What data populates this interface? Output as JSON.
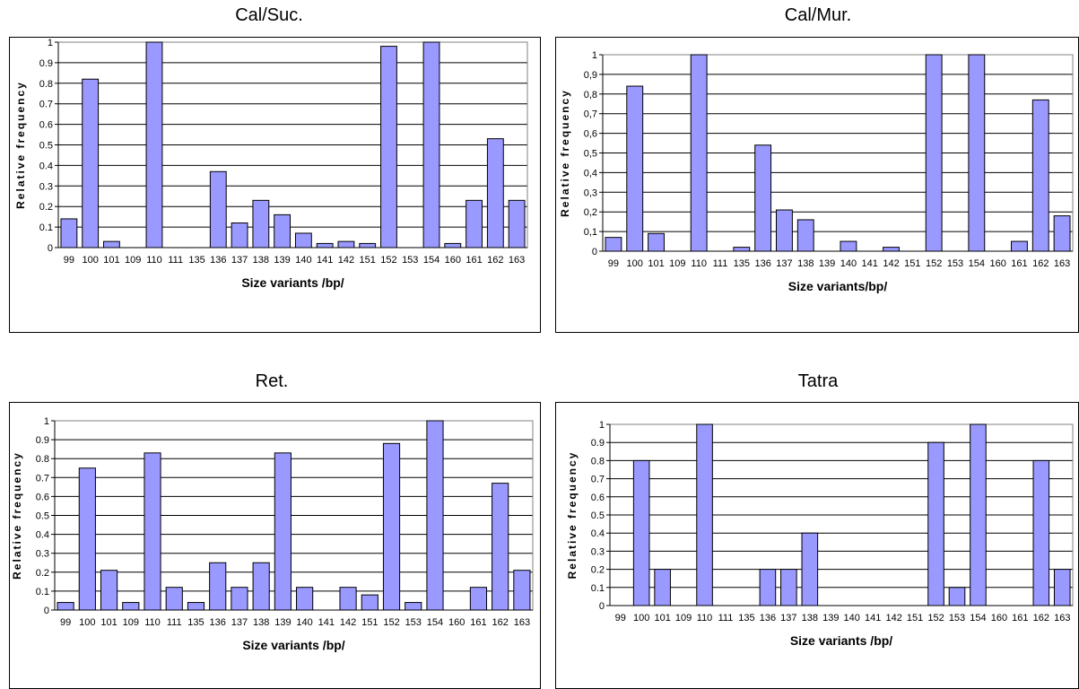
{
  "chart_data": [
    {
      "type": "bar",
      "title": "Cal/Suc.",
      "xlabel": "Size variants /bp/",
      "ylabel": "Relative frequency",
      "ylim": [
        0,
        1
      ],
      "y_ticks": [
        "0",
        "0.1",
        "0.2",
        "0.3",
        "0.4",
        "0.5",
        "0.6",
        "0.7",
        "0.8",
        "0.9",
        "1"
      ],
      "grid": true,
      "bar_color": "#9999ff",
      "categories": [
        "99",
        "100",
        "101",
        "109",
        "110",
        "111",
        "135",
        "136",
        "137",
        "138",
        "139",
        "140",
        "141",
        "142",
        "151",
        "152",
        "153",
        "154",
        "160",
        "161",
        "162",
        "163"
      ],
      "values": [
        0.14,
        0.82,
        0.03,
        0,
        1.0,
        0,
        0,
        0.37,
        0.12,
        0.23,
        0.16,
        0.07,
        0.02,
        0.03,
        0.02,
        0.98,
        0,
        1.0,
        0.02,
        0.23,
        0.53,
        0.23
      ]
    },
    {
      "type": "bar",
      "title": "Cal/Mur.",
      "xlabel": "Size variants/bp/",
      "ylabel": "Relative frequency",
      "ylim": [
        0,
        1
      ],
      "y_ticks": [
        "0",
        "0,1",
        "0,2",
        "0,3",
        "0,4",
        "0,5",
        "0,6",
        "0,7",
        "0,8",
        "0,9",
        "1"
      ],
      "grid": true,
      "bar_color": "#9999ff",
      "categories": [
        "99",
        "100",
        "101",
        "109",
        "110",
        "111",
        "135",
        "136",
        "137",
        "138",
        "139",
        "140",
        "141",
        "142",
        "151",
        "152",
        "153",
        "154",
        "160",
        "161",
        "162",
        "163"
      ],
      "values": [
        0.07,
        0.84,
        0.09,
        0,
        1.0,
        0,
        0.02,
        0.54,
        0.21,
        0.16,
        0,
        0.05,
        0,
        0.02,
        0,
        1.0,
        0,
        1.0,
        0,
        0.05,
        0.77,
        0.18
      ]
    },
    {
      "type": "bar",
      "title": "Ret.",
      "xlabel": "Size variants /bp/",
      "ylabel": "Relative frequency",
      "ylim": [
        0,
        1
      ],
      "y_ticks": [
        "0",
        "0.1",
        "0.2",
        "0.3",
        "0.4",
        "0.5",
        "0.6",
        "0.7",
        "0.8",
        "0.9",
        "1"
      ],
      "grid": true,
      "bar_color": "#9999ff",
      "categories": [
        "99",
        "100",
        "101",
        "109",
        "110",
        "111",
        "135",
        "136",
        "137",
        "138",
        "139",
        "140",
        "141",
        "142",
        "151",
        "152",
        "153",
        "154",
        "160",
        "161",
        "162",
        "163"
      ],
      "values": [
        0.04,
        0.75,
        0.21,
        0.04,
        0.83,
        0.12,
        0.04,
        0.25,
        0.12,
        0.25,
        0.83,
        0.12,
        0,
        0.12,
        0.08,
        0.88,
        0.04,
        1.0,
        0,
        0.12,
        0.67,
        0.21
      ]
    },
    {
      "type": "bar",
      "title": "Tatra",
      "xlabel": "Size variants /bp/",
      "ylabel": "Relative frequency",
      "ylim": [
        0,
        1
      ],
      "y_ticks": [
        "0",
        "0.1",
        "0.2",
        "0.3",
        "0.4",
        "0.5",
        "0.6",
        "0.7",
        "0.8",
        "0.9",
        "1"
      ],
      "grid": true,
      "bar_color": "#9999ff",
      "categories": [
        "99",
        "100",
        "101",
        "109",
        "110",
        "111",
        "135",
        "136",
        "137",
        "138",
        "139",
        "140",
        "141",
        "142",
        "151",
        "152",
        "153",
        "154",
        "160",
        "161",
        "162",
        "163"
      ],
      "values": [
        0,
        0.8,
        0.2,
        0,
        1.0,
        0,
        0,
        0.2,
        0.2,
        0.4,
        0,
        0,
        0,
        0,
        0,
        0.9,
        0.1,
        1.0,
        0,
        0,
        0.8,
        0.2
      ]
    }
  ]
}
